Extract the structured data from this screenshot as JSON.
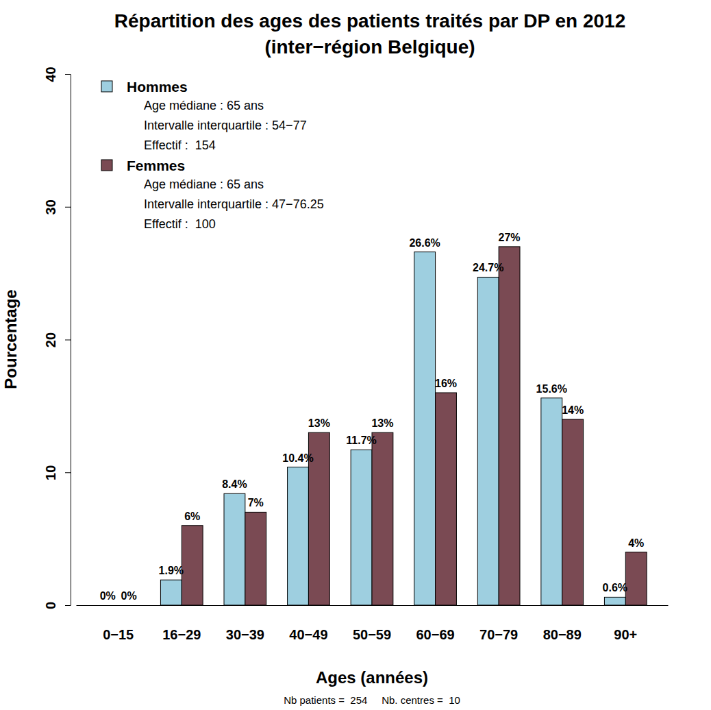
{
  "chart_data": {
    "type": "bar",
    "title": "Répartition des ages des patients traités par DP en 2012\n(inter−région Belgique)",
    "x_label": "Ages (années)",
    "y_label": "Pourcentage",
    "caption": "Nb patients =  254     Nb. centres =  10",
    "categories": [
      "0−15",
      "16−29",
      "30−39",
      "40−49",
      "50−59",
      "60−69",
      "70−79",
      "80−89",
      "90+"
    ],
    "series": [
      {
        "name": "Hommes",
        "color": "#9ecfe0",
        "values": [
          0,
          1.9,
          8.4,
          10.4,
          11.7,
          26.6,
          24.7,
          15.6,
          0.6
        ],
        "value_labels": [
          "0%",
          "1.9%",
          "8.4%",
          "10.4%",
          "11.7%",
          "26.6%",
          "24.7%",
          "15.6%",
          "0.6%"
        ]
      },
      {
        "name": "Femmes",
        "color": "#7a4a53",
        "values": [
          0,
          6,
          7,
          13,
          13,
          16,
          27,
          14,
          4
        ],
        "value_labels": [
          "0%",
          "6%",
          "7%",
          "13%",
          "13%",
          "16%",
          "27%",
          "14%",
          "4%"
        ]
      }
    ],
    "annotations": [
      [
        "Age médiane : 65 ans",
        "Intervalle interquartile : 54−77",
        "Effectif :  154"
      ],
      [
        "Age médiane : 65 ans",
        "Intervalle interquartile : 47−76.25",
        "Effectif :  100"
      ]
    ],
    "ylim": [
      0,
      40
    ],
    "yticks": [
      0,
      10,
      20,
      30,
      40
    ],
    "grid": false,
    "legend": "top-left",
    "data_labels": true
  }
}
